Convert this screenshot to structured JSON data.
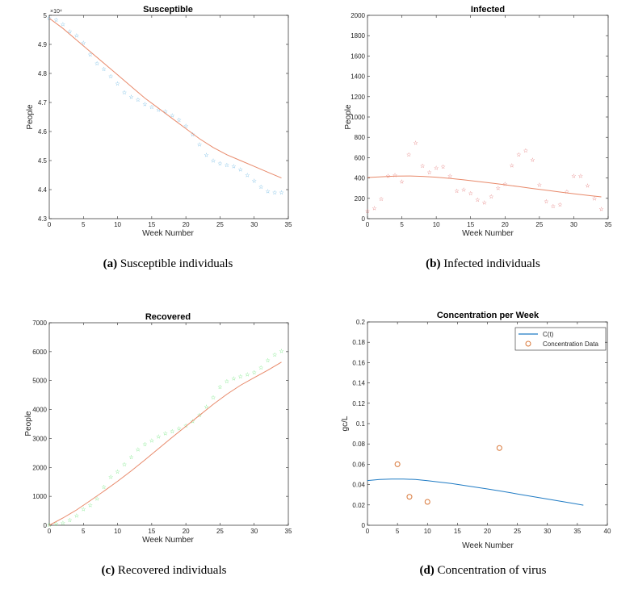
{
  "chart_data": [
    {
      "id": "a",
      "type": "scatter",
      "title": "Susceptible",
      "xlabel": "Week Number",
      "ylabel": "People",
      "xlim": [
        0,
        35
      ],
      "ylim": [
        4.3,
        5.0
      ],
      "y_exponent_label": "×10⁴",
      "xticks": [
        "0",
        "5",
        "10",
        "15",
        "20",
        "25",
        "30",
        "35"
      ],
      "yticks": [
        "4.3",
        "4.4",
        "4.5",
        "4.6",
        "4.7",
        "4.8",
        "4.9",
        "5"
      ],
      "caption_label": "(a)",
      "caption_text": "Susceptible individuals",
      "data_color": "#3b9fd8",
      "model_color": "#e8896a",
      "series": [
        {
          "name": "data",
          "kind": "star",
          "x": [
            0,
            1,
            2,
            3,
            4,
            5,
            6,
            7,
            8,
            9,
            10,
            11,
            12,
            13,
            14,
            15,
            16,
            17,
            18,
            19,
            20,
            21,
            22,
            23,
            24,
            25,
            26,
            27,
            28,
            29,
            30,
            31,
            32,
            33,
            34
          ],
          "y": [
            4.99,
            4.985,
            4.97,
            4.945,
            4.93,
            4.905,
            4.865,
            4.835,
            4.815,
            4.79,
            4.765,
            4.735,
            4.72,
            4.71,
            4.695,
            4.685,
            4.675,
            4.67,
            4.655,
            4.64,
            4.62,
            4.59,
            4.555,
            4.52,
            4.5,
            4.49,
            4.485,
            4.48,
            4.47,
            4.45,
            4.43,
            4.41,
            4.395,
            4.39,
            4.39
          ]
        },
        {
          "name": "model",
          "kind": "line",
          "x": [
            0,
            2,
            4,
            6,
            8,
            10,
            12,
            14,
            16,
            18,
            20,
            22,
            24,
            26,
            28,
            30,
            32,
            34
          ],
          "y": [
            4.99,
            4.955,
            4.915,
            4.875,
            4.835,
            4.795,
            4.755,
            4.715,
            4.68,
            4.645,
            4.61,
            4.575,
            4.545,
            4.52,
            4.5,
            4.48,
            4.46,
            4.44
          ]
        }
      ]
    },
    {
      "id": "b",
      "type": "scatter",
      "title": "Infected",
      "xlabel": "Week Number",
      "ylabel": "People",
      "xlim": [
        0,
        35
      ],
      "ylim": [
        0,
        2000
      ],
      "xticks": [
        "0",
        "5",
        "10",
        "15",
        "20",
        "25",
        "30",
        "35"
      ],
      "yticks": [
        "0",
        "200",
        "400",
        "600",
        "800",
        "1000",
        "1200",
        "1400",
        "1600",
        "1800",
        "2000"
      ],
      "caption_label": "(b)",
      "caption_text": "Infected individuals",
      "data_color": "#d94a4a",
      "model_color": "#e8896a",
      "series": [
        {
          "name": "data",
          "kind": "star",
          "x": [
            0,
            1,
            2,
            3,
            4,
            5,
            6,
            7,
            8,
            9,
            10,
            11,
            12,
            13,
            14,
            15,
            16,
            17,
            18,
            19,
            20,
            21,
            22,
            23,
            24,
            25,
            26,
            27,
            28,
            29,
            30,
            31,
            32,
            33,
            34
          ],
          "y": [
            75,
            105,
            195,
            420,
            430,
            365,
            630,
            745,
            520,
            455,
            500,
            510,
            420,
            275,
            285,
            250,
            185,
            160,
            220,
            300,
            340,
            525,
            630,
            670,
            580,
            335,
            170,
            125,
            140,
            265,
            420,
            420,
            325,
            200,
            95
          ]
        },
        {
          "name": "model",
          "kind": "line",
          "x": [
            0,
            2,
            4,
            6,
            8,
            10,
            12,
            14,
            16,
            18,
            20,
            22,
            24,
            26,
            28,
            30,
            32,
            34
          ],
          "y": [
            405,
            412,
            418,
            420,
            416,
            408,
            396,
            382,
            366,
            350,
            333,
            315,
            297,
            279,
            262,
            245,
            229,
            214
          ]
        }
      ]
    },
    {
      "id": "c",
      "type": "scatter",
      "title": "Recovered",
      "xlabel": "Week Number",
      "ylabel": "People",
      "xlim": [
        0,
        35
      ],
      "ylim": [
        0,
        7000
      ],
      "xticks": [
        "0",
        "5",
        "10",
        "15",
        "20",
        "25",
        "30",
        "35"
      ],
      "yticks": [
        "0",
        "1000",
        "2000",
        "3000",
        "4000",
        "5000",
        "6000",
        "7000"
      ],
      "caption_label": "(c)",
      "caption_text": "Recovered individuals",
      "data_color": "#44dd55",
      "model_color": "#e8896a",
      "series": [
        {
          "name": "data",
          "kind": "star",
          "x": [
            0,
            1,
            2,
            3,
            4,
            5,
            6,
            7,
            8,
            9,
            10,
            11,
            12,
            13,
            14,
            15,
            16,
            17,
            18,
            19,
            20,
            21,
            22,
            23,
            24,
            25,
            26,
            27,
            28,
            29,
            30,
            31,
            32,
            33,
            34
          ],
          "y": [
            20,
            50,
            90,
            180,
            330,
            560,
            700,
            920,
            1330,
            1670,
            1850,
            2100,
            2350,
            2620,
            2800,
            2930,
            3070,
            3180,
            3250,
            3340,
            3450,
            3600,
            3800,
            4100,
            4420,
            4780,
            4980,
            5080,
            5150,
            5220,
            5290,
            5450,
            5700,
            5900,
            6020
          ]
        },
        {
          "name": "model",
          "kind": "line",
          "x": [
            0,
            2,
            4,
            6,
            8,
            10,
            12,
            14,
            16,
            18,
            20,
            22,
            24,
            26,
            28,
            30,
            32,
            34
          ],
          "y": [
            0,
            250,
            530,
            850,
            1180,
            1520,
            1880,
            2260,
            2650,
            3040,
            3420,
            3800,
            4180,
            4530,
            4840,
            5100,
            5360,
            5640
          ]
        }
      ]
    },
    {
      "id": "d",
      "type": "line",
      "title": "Concentration per Week",
      "xlabel": "Week Number",
      "ylabel": "gc/L",
      "xlim": [
        0,
        40
      ],
      "ylim": [
        0,
        0.2
      ],
      "xticks": [
        "0",
        "5",
        "10",
        "15",
        "20",
        "25",
        "30",
        "35",
        "40"
      ],
      "yticks": [
        "0",
        "0.02",
        "0.04",
        "0.06",
        "0.08",
        "0.1",
        "0.12",
        "0.14",
        "0.16",
        "0.18",
        "0.2"
      ],
      "caption_label": "(d)",
      "caption_text": "Concentration of virus",
      "legend_position": "top-right",
      "series": [
        {
          "name": "C(t)",
          "kind": "line",
          "color": "#1f7bc4",
          "x": [
            0,
            2,
            4,
            6,
            8,
            10,
            12,
            14,
            16,
            18,
            20,
            22,
            24,
            26,
            28,
            30,
            32,
            34,
            36
          ],
          "y": [
            0.044,
            0.045,
            0.0455,
            0.0455,
            0.045,
            0.0438,
            0.0425,
            0.041,
            0.0393,
            0.0375,
            0.0357,
            0.0338,
            0.0318,
            0.0298,
            0.0278,
            0.0258,
            0.0238,
            0.0218,
            0.0198
          ]
        },
        {
          "name": "Concentration Data",
          "kind": "circle",
          "color": "#d9783a",
          "x": [
            5,
            7,
            10,
            22
          ],
          "y": [
            0.06,
            0.028,
            0.023,
            0.076
          ]
        }
      ]
    }
  ]
}
